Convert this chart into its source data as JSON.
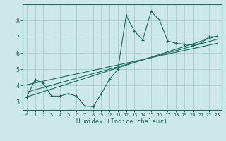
{
  "title": "",
  "xlabel": "Humidex (Indice chaleur)",
  "ylabel": "",
  "bg_color": "#cce8e8",
  "grid_color": "#aacccc",
  "line_color": "#1a6b5e",
  "xlim": [
    -0.5,
    23.5
  ],
  "ylim": [
    2.5,
    9.0
  ],
  "yticks": [
    3,
    4,
    5,
    6,
    7,
    8
  ],
  "xticks": [
    0,
    1,
    2,
    3,
    4,
    5,
    6,
    7,
    8,
    9,
    10,
    11,
    12,
    13,
    14,
    15,
    16,
    17,
    18,
    19,
    20,
    21,
    22,
    23
  ],
  "series": [
    [
      0,
      3.3
    ],
    [
      1,
      4.35
    ],
    [
      2,
      4.15
    ],
    [
      3,
      3.35
    ],
    [
      4,
      3.35
    ],
    [
      5,
      3.5
    ],
    [
      6,
      3.35
    ],
    [
      7,
      2.75
    ],
    [
      8,
      2.7
    ],
    [
      9,
      3.5
    ],
    [
      10,
      4.4
    ],
    [
      11,
      5.0
    ],
    [
      12,
      8.3
    ],
    [
      13,
      7.35
    ],
    [
      14,
      6.8
    ],
    [
      15,
      8.55
    ],
    [
      16,
      8.05
    ],
    [
      17,
      6.75
    ],
    [
      18,
      6.6
    ],
    [
      19,
      6.55
    ],
    [
      20,
      6.5
    ],
    [
      21,
      6.6
    ],
    [
      22,
      7.0
    ],
    [
      23,
      7.0
    ]
  ],
  "line1": [
    [
      0,
      3.3
    ],
    [
      23,
      7.05
    ]
  ],
  "line2": [
    [
      0,
      3.6
    ],
    [
      23,
      6.85
    ]
  ],
  "line3": [
    [
      0,
      4.05
    ],
    [
      23,
      6.6
    ]
  ]
}
